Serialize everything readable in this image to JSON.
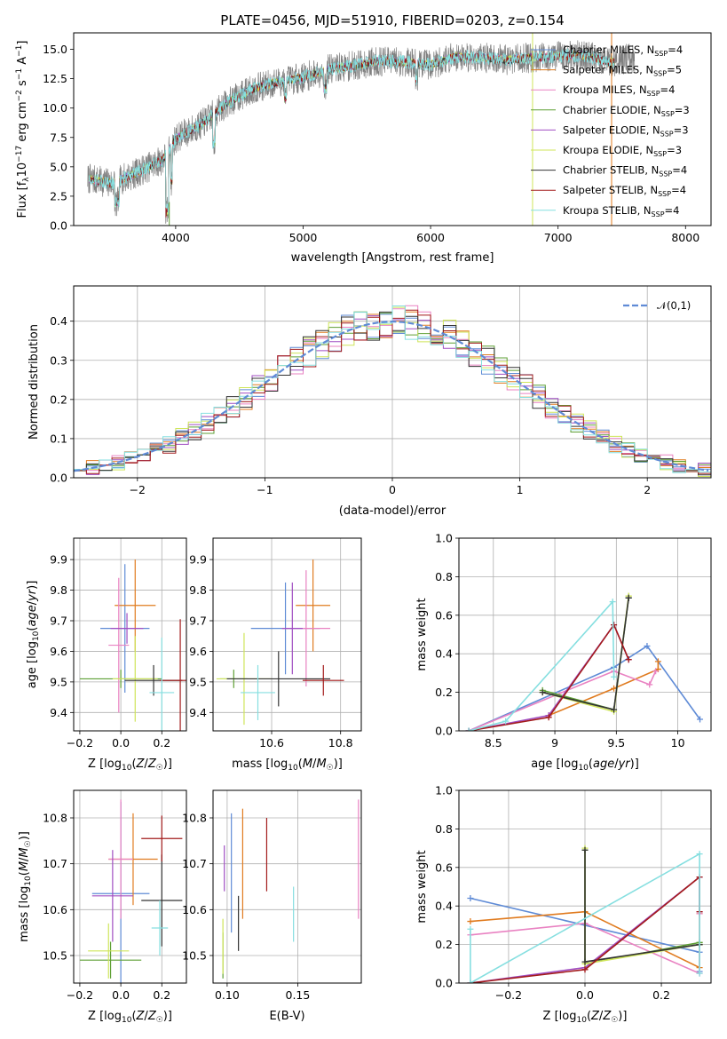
{
  "colors": {
    "series": [
      "#5f8bd6",
      "#e07b1f",
      "#e982c2",
      "#5e9f34",
      "#a04ec2",
      "#cfe55a",
      "#333333",
      "#a31b1b",
      "#86dfe0"
    ],
    "gauss": "#5f8bd6",
    "spectrum": "#808080"
  },
  "series_names": [
    "Chabrier MILES, N_SSP=4",
    "Salpeter MILES, N_SSP=5",
    "Kroupa MILES, N_SSP=4",
    "Chabrier ELODIE, N_SSP=3",
    "Salpeter ELODIE, N_SSP=3",
    "Kroupa ELODIE, N_SSP=3",
    "Chabrier STELIB, N_SSP=4",
    "Salpeter STELIB, N_SSP=4",
    "Kroupa STELIB, N_SSP=4"
  ],
  "legend_display": [
    "Chabrier MILES, N",
    "Salpeter MILES, N",
    "Kroupa MILES, N",
    "Chabrier ELODIE, N",
    "Salpeter ELODIE, N",
    "Kroupa ELODIE, N",
    "Chabrier STELIB, N",
    "Salpeter STELIB, N",
    "Kroupa STELIB, N"
  ],
  "legend_sub": "SSP",
  "legend_vals": [
    "=4",
    "=5",
    "=4",
    "=3",
    "=3",
    "=3",
    "=4",
    "=4",
    "=4"
  ],
  "chart_data": [
    {
      "id": "spectrum",
      "type": "line",
      "title": "PLATE=0456, MJD=51910, FIBERID=0203, z=0.154",
      "xlabel": "wavelength [Angstrom, rest frame]",
      "ylabel": "Flux [f_λ 10^-17 erg cm^-2 s^-1 A^-1]",
      "ylabel_parts": [
        "Flux [f",
        "λ",
        "10",
        "−17",
        " erg cm",
        "−2",
        " s",
        "−1",
        " A",
        "−1",
        "]"
      ],
      "xlim": [
        3200,
        8200
      ],
      "ylim": [
        0,
        16.4
      ],
      "xticks": [
        4000,
        5000,
        6000,
        7000,
        8000
      ],
      "yticks": [
        0.0,
        2.5,
        5.0,
        7.5,
        10.0,
        12.5,
        15.0
      ],
      "grid": false,
      "legend_position": "upper right",
      "continuum_x": [
        3300,
        3500,
        3700,
        3900,
        4000,
        4200,
        4400,
        4600,
        4800,
        5000,
        5200,
        5400,
        5600,
        5800,
        6000,
        6200,
        6400,
        6600,
        6800,
        7000,
        7200,
        7400,
        7600,
        7800
      ],
      "continuum_y": [
        4.0,
        3.6,
        4.5,
        5.6,
        7.4,
        8.6,
        10.4,
        11.6,
        12.2,
        12.6,
        13.3,
        13.6,
        14.0,
        13.9,
        13.7,
        14.4,
        14.3,
        14.1,
        14.3,
        14.4,
        14.5,
        13.9,
        14.3,
        14.0
      ]
    },
    {
      "id": "residuals",
      "type": "histogram",
      "xlabel": "(data-model)/error",
      "ylabel": "Normed distribution",
      "xlim": [
        -2.5,
        2.5
      ],
      "ylim": [
        0,
        0.49
      ],
      "xticks": [
        -2,
        -1,
        0,
        1,
        2
      ],
      "xticklabels": [
        "−2",
        "−1",
        "0",
        "1",
        "2"
      ],
      "yticks": [
        0.0,
        0.1,
        0.2,
        0.3,
        0.4
      ],
      "grid": true,
      "legend": "𝒩(0,1)",
      "legend_position": "upper right",
      "bin_width": 0.1,
      "gauss_mean": 0,
      "gauss_sigma": 1
    },
    {
      "id": "age-vs-Z",
      "type": "scatter-errorbar",
      "xlabel": "Z [log10(Z/Z☉)]",
      "ylabel": "age  [log10(age/yr)]",
      "xlim": [
        -0.23,
        0.32
      ],
      "ylim": [
        9.34,
        9.97
      ],
      "xticks": [
        -0.2,
        0.0,
        0.2
      ],
      "xticklabels": [
        "−0.2",
        "0.0",
        "0.2"
      ],
      "yticks": [
        9.4,
        9.5,
        9.6,
        9.7,
        9.8,
        9.9
      ],
      "points": [
        {
          "x": 0.02,
          "xerr": 0.12,
          "y": 9.675,
          "yerr": 0.21,
          "s": 0
        },
        {
          "x": 0.07,
          "xerr": 0.1,
          "y": 9.75,
          "yerr": 0.15,
          "s": 1
        },
        {
          "x": -0.01,
          "xerr": 0.05,
          "y": 9.62,
          "yerr": 0.22,
          "s": 2
        },
        {
          "x": 0.0,
          "xerr": 0.2,
          "y": 9.51,
          "yerr": 0.03,
          "s": 3
        },
        {
          "x": 0.03,
          "xerr": 0.08,
          "y": 9.675,
          "yerr": 0.05,
          "s": 4
        },
        {
          "x": 0.07,
          "xerr": 0.11,
          "y": 9.51,
          "yerr": 0.14,
          "s": 5
        },
        {
          "x": 0.16,
          "xerr": 0.14,
          "y": 9.505,
          "yerr": 0.05,
          "s": 6
        },
        {
          "x": 0.29,
          "xerr": 0.1,
          "y": 9.505,
          "yerr": 0.2,
          "s": 7
        },
        {
          "x": 0.2,
          "xerr": 0.06,
          "y": 9.465,
          "yerr": 0.18,
          "s": 8
        }
      ]
    },
    {
      "id": "age-vs-mass",
      "type": "scatter-errorbar",
      "xlabel": "mass [log10(M/M☉)]",
      "ylabel": "",
      "xlim": [
        10.43,
        10.86
      ],
      "ylim": [
        9.34,
        9.97
      ],
      "xticks": [
        10.6,
        10.8
      ],
      "xticklabels": [
        "10.6",
        "10.8"
      ],
      "yticks": [
        9.4,
        9.5,
        9.6,
        9.7,
        9.8,
        9.9
      ],
      "points": [
        {
          "x": 10.64,
          "xerr": 0.1,
          "y": 9.675,
          "yerr": 0.15,
          "s": 0
        },
        {
          "x": 10.72,
          "xerr": 0.05,
          "y": 9.75,
          "yerr": 0.15,
          "s": 1
        },
        {
          "x": 10.7,
          "xerr": 0.07,
          "y": 9.675,
          "yerr": 0.19,
          "s": 2
        },
        {
          "x": 10.49,
          "xerr": 0.04,
          "y": 9.51,
          "yerr": 0.03,
          "s": 3
        },
        {
          "x": 10.66,
          "xerr": 0.03,
          "y": 9.675,
          "yerr": 0.15,
          "s": 4
        },
        {
          "x": 10.52,
          "xerr": 0.08,
          "y": 9.51,
          "yerr": 0.15,
          "s": 5
        },
        {
          "x": 10.62,
          "xerr": 0.15,
          "y": 9.51,
          "yerr": 0.09,
          "s": 6
        },
        {
          "x": 10.75,
          "xerr": 0.06,
          "y": 9.505,
          "yerr": 0.05,
          "s": 7
        },
        {
          "x": 10.56,
          "xerr": 0.05,
          "y": 9.465,
          "yerr": 0.09,
          "s": 8
        }
      ]
    },
    {
      "id": "weight-vs-age",
      "type": "line",
      "xlabel": "age  [log10(age/yr)]",
      "ylabel": "mass weight",
      "xlim": [
        8.22,
        10.27
      ],
      "ylim": [
        0,
        1.0
      ],
      "xticks": [
        8.5,
        9.0,
        9.5,
        10.0
      ],
      "yticks": [
        0.0,
        0.2,
        0.4,
        0.6,
        0.8,
        1.0
      ],
      "grid": true,
      "series": [
        {
          "s": 0,
          "x": [
            8.3,
            9.48,
            9.75,
            10.18
          ],
          "y": [
            0.0,
            0.33,
            0.44,
            0.06
          ]
        },
        {
          "s": 1,
          "x": [
            8.95,
            9.48,
            9.84,
            9.84
          ],
          "y": [
            0.08,
            0.22,
            0.32,
            0.36
          ]
        },
        {
          "s": 2,
          "x": [
            8.3,
            9.48,
            9.77,
            9.82
          ],
          "y": [
            0.0,
            0.31,
            0.24,
            0.31
          ]
        },
        {
          "s": 3,
          "x": [
            8.9,
            9.48,
            9.6,
            9.6
          ],
          "y": [
            0.21,
            0.11,
            0.69,
            0.69
          ]
        },
        {
          "s": 4,
          "x": [
            8.3,
            8.95,
            9.48,
            9.6
          ],
          "y": [
            0.0,
            0.08,
            0.55,
            0.37
          ]
        },
        {
          "s": 5,
          "x": [
            8.9,
            9.48,
            9.6,
            9.6
          ],
          "y": [
            0.2,
            0.1,
            0.7,
            0.7
          ]
        },
        {
          "s": 6,
          "x": [
            8.9,
            9.48,
            9.6,
            9.6
          ],
          "y": [
            0.2,
            0.11,
            0.69,
            0.69
          ]
        },
        {
          "s": 7,
          "x": [
            8.3,
            8.95,
            9.48,
            9.6
          ],
          "y": [
            0.0,
            0.07,
            0.55,
            0.37
          ]
        },
        {
          "s": 8,
          "x": [
            8.3,
            8.6,
            9.47,
            9.48
          ],
          "y": [
            0.0,
            0.05,
            0.67,
            0.28
          ]
        }
      ]
    },
    {
      "id": "mass-vs-Z",
      "type": "scatter-errorbar",
      "xlabel": "Z [log10(Z/Z☉)]",
      "ylabel": "mass [log10(M/M☉)]",
      "xlim": [
        -0.23,
        0.32
      ],
      "ylim": [
        10.44,
        10.86
      ],
      "xticks": [
        -0.2,
        0.0,
        0.2
      ],
      "xticklabels": [
        "−0.2",
        "0.0",
        "0.2"
      ],
      "yticks": [
        10.5,
        10.6,
        10.7,
        10.8
      ],
      "points": [
        {
          "x": 0.0,
          "xerr": 0.14,
          "y": 10.635,
          "yerr": 0.2,
          "s": 0
        },
        {
          "x": 0.06,
          "xerr": 0.12,
          "y": 10.71,
          "yerr": 0.1,
          "s": 1
        },
        {
          "x": 0.0,
          "xerr": 0.06,
          "y": 10.71,
          "yerr": 0.13,
          "s": 2
        },
        {
          "x": -0.05,
          "xerr": 0.15,
          "y": 10.49,
          "yerr": 0.04,
          "s": 3
        },
        {
          "x": -0.04,
          "xerr": 0.1,
          "y": 10.63,
          "yerr": 0.1,
          "s": 4
        },
        {
          "x": -0.06,
          "xerr": 0.1,
          "y": 10.51,
          "yerr": 0.06,
          "s": 5
        },
        {
          "x": 0.2,
          "xerr": 0.1,
          "y": 10.62,
          "yerr": 0.1,
          "s": 6
        },
        {
          "x": 0.2,
          "xerr": 0.1,
          "y": 10.755,
          "yerr": 0.05,
          "s": 7
        },
        {
          "x": 0.19,
          "xerr": 0.04,
          "y": 10.56,
          "yerr": 0.06,
          "s": 8
        }
      ]
    },
    {
      "id": "mass-vs-EBV",
      "type": "errorbar",
      "xlabel": "E(B-V)",
      "ylabel": "",
      "xlim": [
        0.09,
        0.195
      ],
      "ylim": [
        10.44,
        10.86
      ],
      "xticks": [
        0.1,
        0.15
      ],
      "xticklabels": [
        "0.10",
        "0.15"
      ],
      "yticks": [
        10.5,
        10.6,
        10.7,
        10.8
      ],
      "points": [
        {
          "x": 0.103,
          "y": 10.68,
          "yerr": 0.13,
          "s": 0
        },
        {
          "x": 0.111,
          "y": 10.7,
          "yerr": 0.12,
          "s": 1
        },
        {
          "x": 0.193,
          "y": 10.71,
          "yerr": 0.13,
          "s": 2
        },
        {
          "x": 0.097,
          "y": 10.5,
          "yerr": 0.05,
          "s": 3
        },
        {
          "x": 0.098,
          "y": 10.69,
          "yerr": 0.05,
          "s": 4
        },
        {
          "x": 0.097,
          "y": 10.52,
          "yerr": 0.06,
          "s": 5
        },
        {
          "x": 0.108,
          "y": 10.57,
          "yerr": 0.06,
          "s": 6
        },
        {
          "x": 0.128,
          "y": 10.72,
          "yerr": 0.08,
          "s": 7
        },
        {
          "x": 0.147,
          "y": 10.59,
          "yerr": 0.06,
          "s": 8
        }
      ]
    },
    {
      "id": "weight-vs-Z",
      "type": "line",
      "xlabel": "Z [log10(Z/Z☉)]",
      "ylabel": "mass weight",
      "xlim": [
        -0.33,
        0.33
      ],
      "ylim": [
        0,
        1.0
      ],
      "xticks": [
        -0.2,
        0.0,
        0.2
      ],
      "xticklabels": [
        "−0.2",
        "0.0",
        "0.2"
      ],
      "yticks": [
        0.0,
        0.2,
        0.4,
        0.6,
        0.8,
        1.0
      ],
      "grid": true,
      "series": [
        {
          "s": 0,
          "x": [
            -0.3,
            0.3,
            0.3
          ],
          "y": [
            0.44,
            0.16,
            0.06
          ]
        },
        {
          "s": 1,
          "x": [
            -0.3,
            0.0,
            0.3,
            0.3
          ],
          "y": [
            0.32,
            0.37,
            0.08,
            0.36
          ]
        },
        {
          "s": 2,
          "x": [
            -0.3,
            0.0,
            0.3,
            0.3
          ],
          "y": [
            0.25,
            0.31,
            0.05,
            0.36
          ]
        },
        {
          "s": 3,
          "x": [
            0.0,
            0.0,
            0.3,
            0.3
          ],
          "y": [
            0.69,
            0.1,
            0.21,
            0.21
          ]
        },
        {
          "s": 4,
          "x": [
            -0.3,
            0.0,
            0.3,
            0.3
          ],
          "y": [
            0.0,
            0.08,
            0.55,
            0.37
          ]
        },
        {
          "s": 5,
          "x": [
            0.0,
            0.0,
            0.3,
            0.3
          ],
          "y": [
            0.7,
            0.1,
            0.2,
            0.2
          ]
        },
        {
          "s": 6,
          "x": [
            0.0,
            0.0,
            0.3,
            0.3
          ],
          "y": [
            0.69,
            0.11,
            0.2,
            0.2
          ]
        },
        {
          "s": 7,
          "x": [
            -0.3,
            0.0,
            0.3,
            0.3
          ],
          "y": [
            0.0,
            0.07,
            0.55,
            0.37
          ]
        },
        {
          "s": 8,
          "x": [
            -0.3,
            -0.3,
            0.3,
            0.3
          ],
          "y": [
            0.28,
            0.0,
            0.67,
            0.05
          ]
        }
      ]
    }
  ]
}
